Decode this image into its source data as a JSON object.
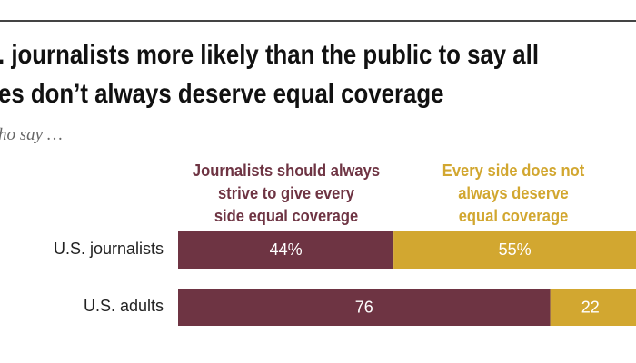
{
  "title_lines": [
    ". journalists more likely than the public to say all",
    "es don’t always deserve equal coverage"
  ],
  "subtitle": "ho say …",
  "colors": {
    "always_equal": "#6e3443",
    "not_always": "#d2a730"
  },
  "chart_data": {
    "type": "bar",
    "orientation": "horizontal",
    "stacked": true,
    "categories": [
      "U.S. journalists",
      "U.S. adults"
    ],
    "series": [
      {
        "name": "Journalists should always strive to give every side equal coverage",
        "values": [
          44,
          76
        ],
        "labels": [
          "44%",
          "76"
        ]
      },
      {
        "name": "Every side does not always deserve equal coverage",
        "values": [
          55,
          22
        ],
        "labels": [
          "55%",
          "22"
        ]
      }
    ],
    "legend_lines": [
      [
        "Journalists should always",
        "strive to give every",
        "side equal coverage"
      ],
      [
        "Every side does not",
        "always deserve",
        "equal coverage"
      ]
    ],
    "xlim": [
      0,
      100
    ],
    "grid": false
  }
}
